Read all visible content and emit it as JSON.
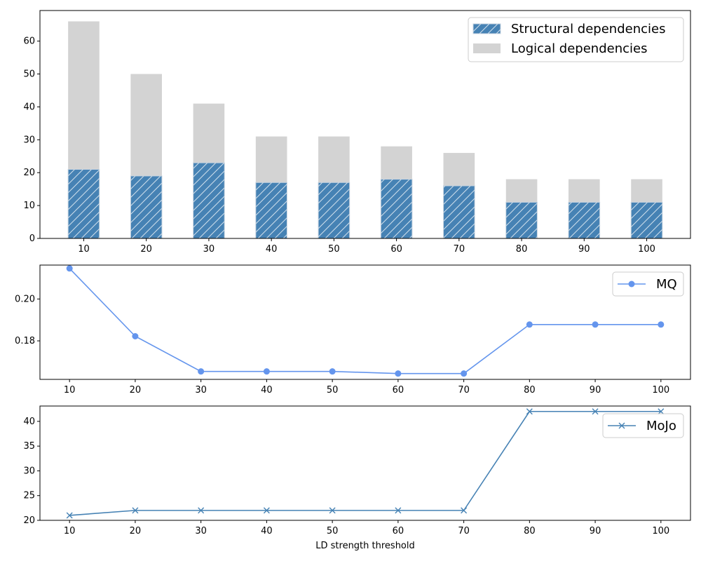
{
  "chart_data": [
    {
      "type": "bar",
      "categories": [
        "10",
        "20",
        "30",
        "40",
        "50",
        "60",
        "70",
        "80",
        "90",
        "100"
      ],
      "series": [
        {
          "name": "Structural dependencies",
          "values": [
            21,
            19,
            23,
            17,
            17,
            18,
            16,
            11,
            11,
            11
          ],
          "color": "#4682b4",
          "hatch": "/"
        },
        {
          "name": "Logical dependencies",
          "values": [
            66,
            50,
            41,
            31,
            31,
            28,
            26,
            18,
            18,
            18
          ],
          "color": "#d3d3d3"
        }
      ],
      "stacking": "overlay",
      "ylim": [
        0,
        69.3
      ],
      "yticks": [
        0,
        10,
        20,
        30,
        40,
        50,
        60
      ],
      "legend": "top-right",
      "grid": false
    },
    {
      "type": "line",
      "x": [
        10,
        20,
        30,
        40,
        50,
        60,
        70,
        80,
        90,
        100
      ],
      "series": [
        {
          "name": "MQ",
          "values": [
            0.2146,
            0.1822,
            0.1654,
            0.1654,
            0.1654,
            0.1644,
            0.1644,
            0.1878,
            0.1878,
            0.1878
          ],
          "color": "#6495ed",
          "marker": "circle"
        }
      ],
      "xlim": [
        5.5,
        104.5
      ],
      "ylim": [
        0.1616,
        0.2162
      ],
      "xticks": [
        10,
        20,
        30,
        40,
        50,
        60,
        70,
        80,
        90,
        100
      ],
      "yticks": [
        0.18,
        0.2
      ],
      "ytick_labels": [
        "0.18",
        "0.20"
      ],
      "legend": "top-right",
      "grid": false
    },
    {
      "type": "line",
      "x": [
        10,
        20,
        30,
        40,
        50,
        60,
        70,
        80,
        90,
        100
      ],
      "series": [
        {
          "name": "MoJo",
          "values": [
            21,
            22,
            22,
            22,
            22,
            22,
            22,
            42,
            42,
            42
          ],
          "color": "#4682b4",
          "marker": "x"
        }
      ],
      "xlim": [
        5.5,
        104.5
      ],
      "ylim": [
        20,
        43.1
      ],
      "xticks": [
        10,
        20,
        30,
        40,
        50,
        60,
        70,
        80,
        90,
        100
      ],
      "yticks": [
        20,
        25,
        30,
        35,
        40
      ],
      "xlabel": "LD strength threshold",
      "legend": "top-right",
      "grid": false
    }
  ]
}
